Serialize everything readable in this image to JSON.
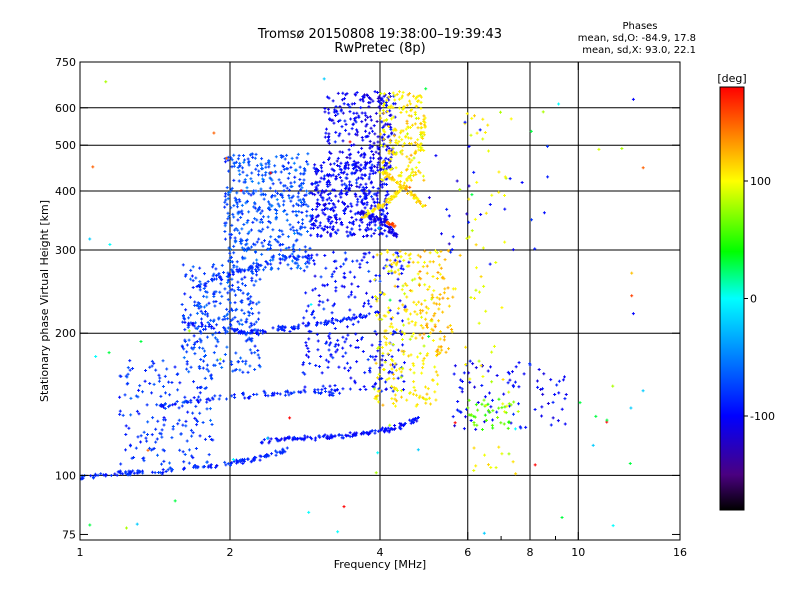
{
  "header": {
    "title_line1": "Tromsø 20150808 19:38:00–19:39:43",
    "title_line2": "RwPretec (8p)"
  },
  "phases": {
    "heading": "Phases",
    "o_line": "mean, sd,O: -84.9, 17.8",
    "x_line": "mean, sd,X:  93.0, 22.1"
  },
  "chart_data": {
    "type": "scatter",
    "title": "Tromsø 20150808 19:38:00–19:39:43",
    "subtitle": "RwPretec (8p)",
    "xlabel": "Frequency [MHz]",
    "ylabel": "Stationary phase Virtual Height [km]",
    "xscale": "log",
    "yscale": "log",
    "xlim": [
      1,
      16
    ],
    "ylim": [
      73,
      750
    ],
    "x_ticks": [
      1,
      2,
      4,
      6,
      8,
      10,
      16
    ],
    "x_tick_labels": [
      "1",
      "2",
      "4",
      "6",
      "8",
      "10",
      "16"
    ],
    "x_minor": [
      7,
      9
    ],
    "x_grid": [
      2,
      4,
      6,
      8,
      10
    ],
    "y_ticks": [
      75,
      100,
      200,
      300,
      400,
      500,
      600,
      750
    ],
    "y_tick_labels": [
      "75",
      "100",
      "200",
      "300",
      "400",
      "500",
      "600",
      "750"
    ],
    "y_grid": [
      100,
      200,
      300,
      400,
      500,
      600
    ],
    "grid": true,
    "colorbar": {
      "label": "[deg]",
      "range": [
        -180,
        180
      ],
      "ticks": [
        100,
        0,
        -100
      ],
      "tick_labels": [
        "100",
        "0",
        "-100"
      ],
      "colors": [
        "#ff0000",
        "#ff8000",
        "#ffff00",
        "#00ff00",
        "#00ffff",
        "#0000ff",
        "#4a0080",
        "#000000"
      ]
    },
    "traces": [
      {
        "name": "",
        "phase": -85,
        "x": [
          1.0,
          1.2,
          1.45,
          1.7,
          2.0,
          2.3,
          2.6
        ],
        "y": [
          99,
          101,
          102,
          104,
          106,
          109,
          113
        ],
        "count": 140,
        "spread": 0.012
      },
      {
        "name": "",
        "phase": -95,
        "x": [
          2.3,
          2.8,
          3.3,
          3.8,
          4.3,
          4.8
        ],
        "y": [
          118,
          120,
          121,
          123,
          126,
          132
        ],
        "count": 140,
        "spread": 0.012
      },
      {
        "name": "",
        "phase": -85,
        "x": [
          1.45,
          1.8,
          2.2,
          2.8,
          3.3
        ],
        "y": [
          140,
          145,
          148,
          150,
          150
        ],
        "count": 90,
        "spread": 0.015
      },
      {
        "name": "",
        "phase": -90,
        "x": [
          1.6,
          1.9,
          2.2,
          2.6,
          3.0,
          3.5,
          4.0
        ],
        "y": [
          212,
          205,
          200,
          205,
          210,
          215,
          222
        ],
        "count": 130,
        "spread": 0.014
      },
      {
        "name": "",
        "phase": -85,
        "x": [
          1.7,
          1.9,
          2.1,
          2.5,
          2.9
        ],
        "y": [
          250,
          262,
          272,
          285,
          292
        ],
        "count": 70,
        "spread": 0.014
      },
      {
        "name": "",
        "phase": -110,
        "x": [
          3.6,
          3.9,
          4.1,
          4.3
        ],
        "y": [
          362,
          352,
          340,
          322
        ],
        "count": 60,
        "spread": 0.012
      },
      {
        "name": "",
        "phase": 115,
        "x": [
          4.0,
          4.3,
          4.6,
          4.9
        ],
        "y": [
          440,
          420,
          395,
          370
        ],
        "count": 60,
        "spread": 0.012
      },
      {
        "name": "",
        "phase": 110,
        "x": [
          3.7,
          4.0,
          4.3,
          4.7
        ],
        "y": [
          355,
          372,
          392,
          440
        ],
        "count": 70,
        "spread": 0.012
      },
      {
        "name": "",
        "phase": 150,
        "x": [
          4.1,
          4.3
        ],
        "y": [
          344,
          338
        ],
        "count": 14,
        "spread": 0.008
      },
      {
        "name": "",
        "phase": 105,
        "x": [
          4.8,
          4.95
        ],
        "y": [
          480,
          580
        ],
        "count": 25,
        "spread": 0.012
      }
    ],
    "clusters": [
      {
        "name": "",
        "phase": -70,
        "x": [
          1.95,
          2.9
        ],
        "y": [
          270,
          480
        ],
        "count": 450
      },
      {
        "name": "",
        "phase": -75,
        "x": [
          1.6,
          2.3
        ],
        "y": [
          165,
          280
        ],
        "count": 280
      },
      {
        "name": "",
        "phase": -80,
        "x": [
          1.2,
          1.85
        ],
        "y": [
          105,
          175
        ],
        "count": 170
      },
      {
        "name": "",
        "phase": -100,
        "x": [
          2.9,
          4.15
        ],
        "y": [
          320,
          460
        ],
        "count": 420
      },
      {
        "name": "",
        "phase": -105,
        "x": [
          3.1,
          4.3
        ],
        "y": [
          440,
          650
        ],
        "count": 260
      },
      {
        "name": "",
        "phase": -95,
        "x": [
          2.8,
          4.5
        ],
        "y": [
          150,
          300
        ],
        "count": 260
      },
      {
        "name": "",
        "phase": 105,
        "x": [
          3.9,
          5.3
        ],
        "y": [
          140,
          300
        ],
        "count": 230
      },
      {
        "name": "",
        "phase": 120,
        "x": [
          4.8,
          5.6
        ],
        "y": [
          180,
          300
        ],
        "count": 70
      },
      {
        "name": "",
        "phase": 105,
        "x": [
          4.0,
          4.9
        ],
        "y": [
          420,
          650
        ],
        "count": 170
      },
      {
        "name": "",
        "phase": -100,
        "x": [
          5.6,
          9.5
        ],
        "y": [
          125,
          175
        ],
        "count": 90
      },
      {
        "name": "",
        "phase": 60,
        "x": [
          6.0,
          7.5
        ],
        "y": [
          125,
          145
        ],
        "count": 40
      },
      {
        "name": "",
        "phase": 100,
        "x": [
          5.6,
          7.6
        ],
        "y": [
          100,
          600
        ],
        "count": 70
      },
      {
        "name": "",
        "phase": -100,
        "x": [
          4.5,
          9.0
        ],
        "y": [
          280,
          560
        ],
        "count": 30
      }
    ],
    "scattered": {
      "phase_values": [
        0,
        30,
        -20,
        180,
        80,
        150
      ],
      "x": [
        1.0,
        14.0
      ],
      "y": [
        75,
        700
      ],
      "count": 60
    },
    "isolated_points": [
      {
        "name": "",
        "phase": -100,
        "x": 12.9,
        "y": 625
      },
      {
        "name": "",
        "phase": 120,
        "x": 12.8,
        "y": 268
      },
      {
        "name": "",
        "phase": 160,
        "x": 12.8,
        "y": 240
      },
      {
        "name": "",
        "phase": -100,
        "x": 12.9,
        "y": 220
      },
      {
        "name": "",
        "phase": 90,
        "x": 11.0,
        "y": 490
      }
    ]
  }
}
